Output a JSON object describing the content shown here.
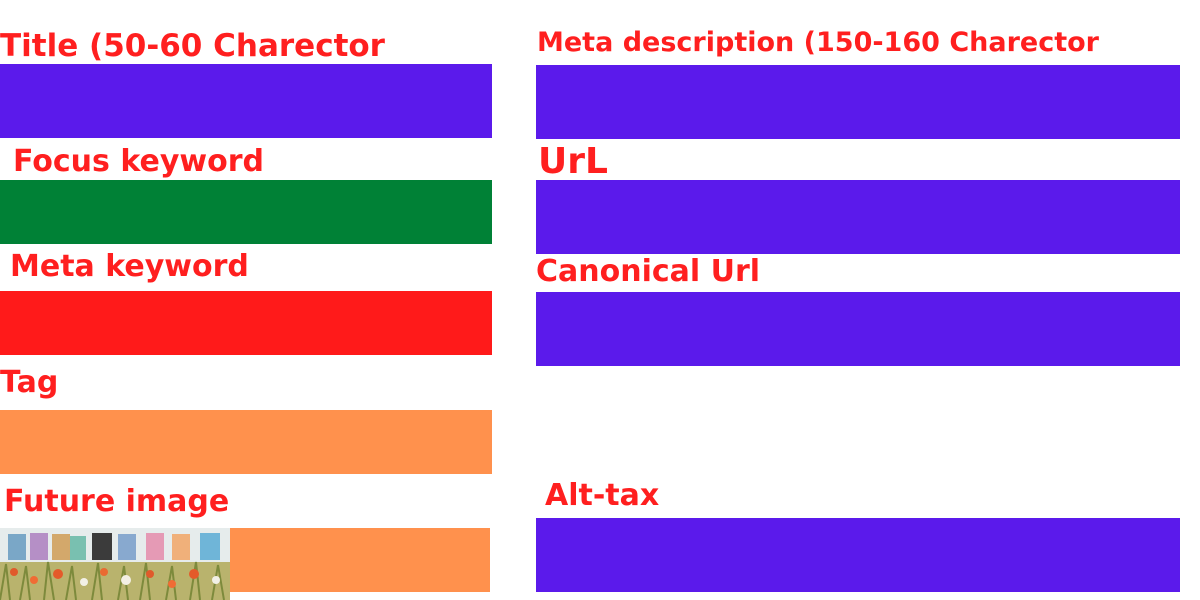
{
  "fields": {
    "title": {
      "label": "Title (50-60 Charector",
      "color": "#5b1aeb"
    },
    "focus_keyword": {
      "label": "Focus keyword",
      "color": "#008136"
    },
    "meta_keyword": {
      "label": "Meta keyword",
      "color": "#ff1a1a"
    },
    "tag": {
      "label": "Tag",
      "color": "#ff914d"
    },
    "future_image": {
      "label": "Future image",
      "color": "#ff914d"
    },
    "meta_description": {
      "label": "Meta description (150-160 Charector",
      "color": "#5b1aeb"
    },
    "url": {
      "label": "UrL",
      "color": "#5b1aeb"
    },
    "canonical_url": {
      "label": "Canonical Url",
      "color": "#5b1aeb"
    },
    "alt_tax": {
      "label": "Alt-tax",
      "color": "#5b1aeb"
    }
  },
  "label_color": "#ff1f1f",
  "thumbnail": {
    "icon": "flower-field-products-image"
  }
}
